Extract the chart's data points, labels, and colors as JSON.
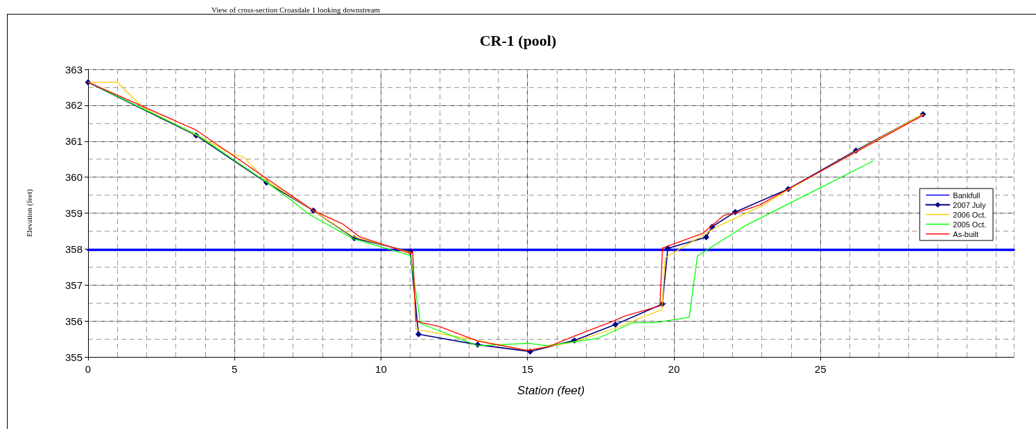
{
  "chart_data": {
    "type": "line",
    "title": "CR-1 (pool)",
    "xlabel": "Station (feet)",
    "ylabel": "Elevation (feet)",
    "annotations": [
      "View of cross-section Croasdale 1 looking downstream"
    ],
    "xlim": [
      0,
      31.6
    ],
    "xticks": [
      0,
      5,
      10,
      15,
      20,
      25
    ],
    "ylim": [
      355,
      363
    ],
    "yticks": [
      355,
      356,
      357,
      358,
      359,
      360,
      361,
      362,
      363
    ],
    "grid": true,
    "legend": "right",
    "line_style": "solid",
    "series": [
      {
        "name": "Bankfull",
        "color": "#0000ff",
        "marker": "none",
        "x": [
          0,
          31.6
        ],
        "values": [
          357.98,
          357.98
        ]
      },
      {
        "name": "2007 July",
        "color": "#000080",
        "marker": "diamond",
        "x": [
          0,
          3.69,
          6.09,
          7.69,
          9.09,
          11.0,
          11.28,
          13.3,
          15.09,
          16.6,
          18.0,
          19.6,
          19.79,
          21.1,
          21.3,
          22.09,
          23.9,
          26.21,
          28.5
        ],
        "values": [
          362.64,
          361.16,
          359.85,
          359.07,
          358.3,
          357.93,
          355.63,
          355.34,
          355.15,
          355.46,
          355.9,
          356.47,
          358.02,
          358.33,
          358.62,
          359.03,
          359.67,
          360.74,
          361.75
        ]
      },
      {
        "name": "2006 Oct.",
        "color": "#ffcc00",
        "marker": "none",
        "x": [
          0,
          1.0,
          1.88,
          3.69,
          4.92,
          5.31,
          6.08,
          7.69,
          9.04,
          11.0,
          11.09,
          11.19,
          13.23,
          14.99,
          16.6,
          18.0,
          19.59,
          19.7,
          21.1,
          21.49,
          23.0,
          23.9,
          26.5,
          28.5
        ],
        "values": [
          362.64,
          362.64,
          361.93,
          361.17,
          360.64,
          360.56,
          359.9,
          359.07,
          358.35,
          357.91,
          357.88,
          355.77,
          355.47,
          355.18,
          355.42,
          355.8,
          356.32,
          357.76,
          358.44,
          358.63,
          359.2,
          359.65,
          360.85,
          361.75
        ]
      },
      {
        "name": "2005 Oct.",
        "color": "#00ff00",
        "marker": "none",
        "x": [
          0,
          3.69,
          6.08,
          7.0,
          7.54,
          9.04,
          11.0,
          11.35,
          13.3,
          15.0,
          15.67,
          16.6,
          17.4,
          18.58,
          19.34,
          20.52,
          20.8,
          22.39,
          26.8
        ],
        "values": [
          362.64,
          361.19,
          359.87,
          359.32,
          358.97,
          358.29,
          357.82,
          355.93,
          355.31,
          355.38,
          355.31,
          355.42,
          355.52,
          355.95,
          355.95,
          356.1,
          357.81,
          358.63,
          360.45
        ]
      },
      {
        "name": "As-built",
        "color": "#ff0000",
        "marker": "none",
        "x": [
          0,
          3.69,
          6.08,
          7.69,
          8.69,
          9.27,
          11.0,
          11.08,
          11.19,
          12.01,
          13.3,
          14.99,
          15.74,
          16.6,
          18.0,
          18.33,
          19.52,
          19.61,
          20.99,
          21.71,
          22.14,
          22.93,
          23.9,
          28.5
        ],
        "values": [
          362.64,
          361.31,
          359.97,
          359.07,
          358.7,
          358.34,
          357.88,
          357.92,
          355.99,
          355.84,
          355.44,
          355.18,
          355.29,
          355.58,
          356.02,
          356.14,
          356.42,
          358.03,
          358.44,
          358.94,
          359.01,
          359.23,
          359.67,
          361.72
        ]
      }
    ]
  }
}
